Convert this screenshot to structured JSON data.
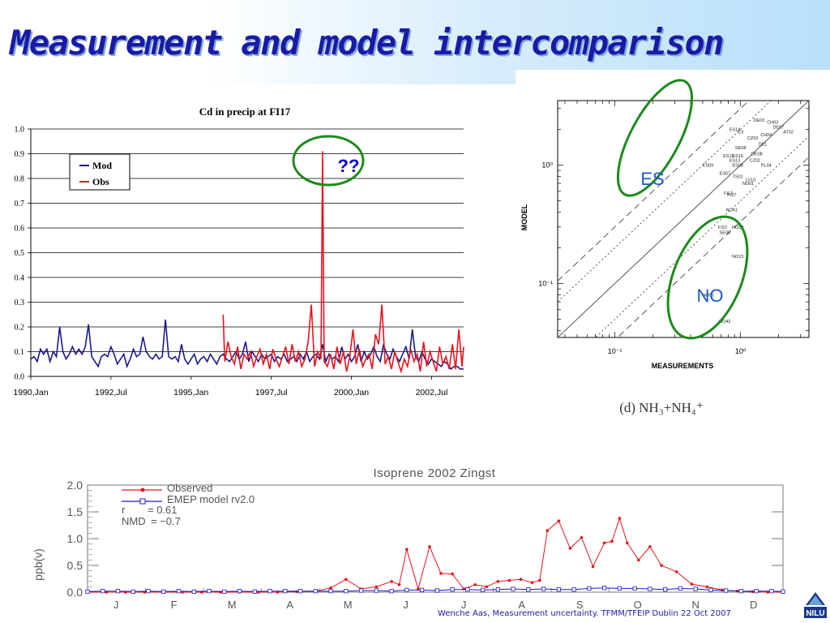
{
  "slide": {
    "title": "Measurement and model intercomparison",
    "footer": "Wenche Aas, Measurement uncertainty. TFMM/TFEIP Dublin 22 Oct 2007",
    "logo_text": "NILU"
  },
  "chart_data": [
    {
      "id": "cd",
      "type": "line",
      "title": "Cd in precip at FI17",
      "x_tick_labels": [
        "1990,Jan",
        "1992,Jul",
        "1995,Jan",
        "1997,Jul",
        "2000,Jan",
        "2002,Jul"
      ],
      "x_tick_decimal_years": [
        1990.0,
        1992.5,
        1995.0,
        1997.5,
        2000.0,
        2002.5
      ],
      "xlim": [
        1990.0,
        2003.5
      ],
      "ylim": [
        0,
        1.0
      ],
      "yticks": [
        "0.0",
        "0.1",
        "0.2",
        "0.3",
        "0.4",
        "0.5",
        "0.6",
        "0.7",
        "0.8",
        "0.9",
        "1.0"
      ],
      "grid": true,
      "legend": "upper-left",
      "series": [
        {
          "name": "Mod",
          "color": "#1a1a8c",
          "x": [
            1990.0,
            1990.1,
            1990.2,
            1990.3,
            1990.4,
            1990.5,
            1990.6,
            1990.7,
            1990.8,
            1990.9,
            1991.0,
            1991.1,
            1991.2,
            1991.3,
            1991.4,
            1991.5,
            1991.6,
            1991.7,
            1991.8,
            1991.9,
            1992.0,
            1992.1,
            1992.2,
            1992.3,
            1992.4,
            1992.5,
            1992.6,
            1992.7,
            1992.8,
            1992.9,
            1993.0,
            1993.1,
            1993.2,
            1993.3,
            1993.4,
            1993.5,
            1993.6,
            1993.7,
            1993.8,
            1993.9,
            1994.0,
            1994.1,
            1994.2,
            1994.3,
            1994.4,
            1994.5,
            1994.6,
            1994.7,
            1994.8,
            1994.9,
            1995.0,
            1995.1,
            1995.2,
            1995.3,
            1995.4,
            1995.5,
            1995.6,
            1995.7,
            1995.8,
            1995.9,
            1996.0,
            1996.1,
            1996.2,
            1996.3,
            1996.4,
            1996.5,
            1996.6,
            1996.7,
            1996.8,
            1996.9,
            1997.0,
            1997.1,
            1997.2,
            1997.3,
            1997.4,
            1997.5,
            1997.6,
            1997.7,
            1997.8,
            1997.9,
            1998.0,
            1998.1,
            1998.2,
            1998.3,
            1998.4,
            1998.5,
            1998.6,
            1998.7,
            1998.8,
            1998.9,
            1999.0,
            1999.1,
            1999.2,
            1999.3,
            1999.4,
            1999.5,
            1999.6,
            1999.7,
            1999.8,
            1999.9,
            2000.0,
            2000.1,
            2000.2,
            2000.3,
            2000.4,
            2000.5,
            2000.6,
            2000.7,
            2000.8,
            2000.9,
            2001.0,
            2001.1,
            2001.2,
            2001.3,
            2001.4,
            2001.5,
            2001.6,
            2001.7,
            2001.8,
            2001.9,
            2002.0,
            2002.1,
            2002.2,
            2002.3,
            2002.4,
            2002.5,
            2002.6,
            2002.7,
            2002.8,
            2002.9,
            2003.0,
            2003.1,
            2003.2,
            2003.3,
            2003.4,
            2003.5
          ],
          "y": [
            0.07,
            0.08,
            0.06,
            0.11,
            0.09,
            0.11,
            0.06,
            0.1,
            0.08,
            0.2,
            0.1,
            0.07,
            0.09,
            0.12,
            0.09,
            0.11,
            0.09,
            0.12,
            0.21,
            0.08,
            0.06,
            0.04,
            0.08,
            0.09,
            0.08,
            0.12,
            0.09,
            0.05,
            0.07,
            0.09,
            0.04,
            0.07,
            0.11,
            0.08,
            0.09,
            0.16,
            0.1,
            0.08,
            0.07,
            0.09,
            0.07,
            0.08,
            0.23,
            0.08,
            0.07,
            0.08,
            0.06,
            0.13,
            0.07,
            0.05,
            0.07,
            0.09,
            0.05,
            0.07,
            0.08,
            0.06,
            0.09,
            0.07,
            0.05,
            0.08,
            0.09,
            0.07,
            0.06,
            0.08,
            0.1,
            0.07,
            0.09,
            0.14,
            0.06,
            0.1,
            0.08,
            0.06,
            0.09,
            0.07,
            0.08,
            0.09,
            0.06,
            0.08,
            0.07,
            0.09,
            0.06,
            0.07,
            0.08,
            0.06,
            0.09,
            0.07,
            0.1,
            0.06,
            0.08,
            0.09,
            0.07,
            0.13,
            0.06,
            0.09,
            0.07,
            0.08,
            0.06,
            0.12,
            0.07,
            0.09,
            0.06,
            0.08,
            0.13,
            0.06,
            0.1,
            0.07,
            0.09,
            0.12,
            0.08,
            0.06,
            0.13,
            0.09,
            0.07,
            0.11,
            0.08,
            0.06,
            0.09,
            0.12,
            0.07,
            0.19,
            0.08,
            0.06,
            0.1,
            0.07,
            0.05,
            0.07,
            0.06,
            0.05,
            0.04,
            0.06,
            0.05,
            0.03,
            0.04,
            0.04,
            0.03,
            0.03
          ]
        },
        {
          "name": "Obs",
          "color": "#e8141c",
          "x": [
            1996.0,
            1996.05,
            1996.15,
            1996.25,
            1996.35,
            1996.45,
            1996.55,
            1996.65,
            1996.75,
            1996.85,
            1996.95,
            1997.05,
            1997.15,
            1997.25,
            1997.35,
            1997.45,
            1997.55,
            1997.65,
            1997.75,
            1997.85,
            1997.95,
            1998.05,
            1998.15,
            1998.25,
            1998.35,
            1998.45,
            1998.55,
            1998.65,
            1998.75,
            1998.85,
            1998.95,
            1999.05,
            1999.1,
            1999.15,
            1999.25,
            1999.35,
            1999.45,
            1999.55,
            1999.65,
            1999.75,
            1999.85,
            1999.95,
            2000.05,
            2000.15,
            2000.25,
            2000.35,
            2000.45,
            2000.55,
            2000.65,
            2000.75,
            2000.85,
            2000.95,
            2001.05,
            2001.15,
            2001.25,
            2001.35,
            2001.45,
            2001.55,
            2001.65,
            2001.75,
            2001.85,
            2001.95,
            2002.05,
            2002.15,
            2002.25,
            2002.35,
            2002.45,
            2002.55,
            2002.65,
            2002.75,
            2002.85,
            2002.95,
            2003.05,
            2003.15,
            2003.25,
            2003.35,
            2003.45,
            2003.5
          ],
          "y": [
            0.25,
            0.06,
            0.14,
            0.08,
            0.05,
            0.12,
            0.03,
            0.09,
            0.07,
            0.1,
            0.04,
            0.08,
            0.11,
            0.05,
            0.09,
            0.03,
            0.11,
            0.07,
            0.04,
            0.08,
            0.12,
            0.05,
            0.13,
            0.06,
            0.1,
            0.04,
            0.07,
            0.14,
            0.29,
            0.04,
            0.1,
            0.07,
            0.91,
            0.06,
            0.04,
            0.09,
            0.03,
            0.12,
            0.05,
            0.1,
            0.02,
            0.08,
            0.19,
            0.05,
            0.11,
            0.04,
            0.07,
            0.09,
            0.03,
            0.17,
            0.13,
            0.29,
            0.05,
            0.08,
            0.03,
            0.1,
            0.06,
            0.02,
            0.07,
            0.04,
            0.11,
            0.06,
            0.09,
            0.02,
            0.14,
            0.04,
            0.1,
            0.06,
            0.02,
            0.12,
            0.05,
            0.08,
            0.03,
            0.13,
            0.03,
            0.19,
            0.04,
            0.12
          ]
        }
      ],
      "annotations": [
        {
          "text": "??",
          "color": "#0000cc"
        }
      ]
    },
    {
      "id": "nh",
      "type": "scatter",
      "xlabel": "MEASUREMENTS",
      "ylabel": "MODEL",
      "x_scale": "log",
      "y_scale": "log",
      "xlim": [
        0.035,
        3.5
      ],
      "ylim": [
        0.035,
        3.5
      ],
      "x_tick_labels": [
        "10⁻¹",
        "10⁰"
      ],
      "y_tick_labels": [
        "10⁻¹",
        "10⁰"
      ],
      "caption": "(d) NH₃+NH₄⁺",
      "reference_lines": [
        "1:1",
        "factor 2",
        "factor 3"
      ],
      "points": [
        {
          "label": "ES14",
          "x": 0.9,
          "y": 2.0
        },
        {
          "label": "DE03",
          "x": 1.4,
          "y": 2.4
        },
        {
          "label": "CH03",
          "x": 1.8,
          "y": 2.3
        },
        {
          "label": "DE07",
          "x": 2.0,
          "y": 2.1
        },
        {
          "label": "AT02",
          "x": 2.4,
          "y": 1.9
        },
        {
          "label": "C3",
          "x": 1.0,
          "y": 1.9
        },
        {
          "label": "CZ03",
          "x": 1.25,
          "y": 1.7
        },
        {
          "label": "CH04",
          "x": 1.6,
          "y": 1.8
        },
        {
          "label": "SE08",
          "x": 1.0,
          "y": 1.4
        },
        {
          "label": "DE1",
          "x": 1.5,
          "y": 1.5
        },
        {
          "label": "ES11",
          "x": 0.8,
          "y": 1.2
        },
        {
          "label": "ES16",
          "x": 0.95,
          "y": 1.2
        },
        {
          "label": "DE08",
          "x": 1.35,
          "y": 1.25
        },
        {
          "label": "ES13",
          "x": 0.9,
          "y": 1.1
        },
        {
          "label": "ES08",
          "x": 0.95,
          "y": 1.0
        },
        {
          "label": "ES09",
          "x": 0.55,
          "y": 1.0
        },
        {
          "label": "CZ02",
          "x": 1.3,
          "y": 1.1
        },
        {
          "label": "PL04",
          "x": 1.6,
          "y": 1.0
        },
        {
          "label": "ES07",
          "x": 0.75,
          "y": 0.85
        },
        {
          "label": "TS01",
          "x": 0.95,
          "y": 0.8
        },
        {
          "label": "LV10",
          "x": 1.2,
          "y": 0.75
        },
        {
          "label": "NO01",
          "x": 1.15,
          "y": 0.7
        },
        {
          "label": "FI17",
          "x": 0.8,
          "y": 0.58
        },
        {
          "label": "FI37",
          "x": 0.85,
          "y": 0.56
        },
        {
          "label": "FI22",
          "x": 0.72,
          "y": 0.3
        },
        {
          "label": "SE05",
          "x": 0.75,
          "y": 0.27
        },
        {
          "label": "NO41",
          "x": 0.85,
          "y": 0.42
        },
        {
          "label": "NO39",
          "x": 0.95,
          "y": 0.3
        },
        {
          "label": "NO15",
          "x": 0.95,
          "y": 0.17
        },
        {
          "label": "NO55",
          "x": 0.55,
          "y": 0.08
        },
        {
          "label": "NO42",
          "x": 0.75,
          "y": 0.048
        }
      ],
      "annotations": [
        {
          "text": "ES",
          "color": "#1a55c8",
          "ring_color": "#1d8a1d"
        },
        {
          "text": "NO",
          "color": "#1a55c8",
          "ring_color": "#1d8a1d"
        }
      ]
    },
    {
      "id": "iso",
      "type": "line",
      "title": "Isoprene 2002 Zingst",
      "ylabel": "ppb(v)",
      "ylim": [
        0.0,
        2.0
      ],
      "yticks": [
        "0.0",
        "0.5",
        "1.0",
        "1.5",
        "2.0"
      ],
      "x_tick_labels": [
        "J",
        "F",
        "M",
        "A",
        "M",
        "J",
        "J",
        "A",
        "S",
        "O",
        "N",
        "D"
      ],
      "xlim": [
        0,
        366
      ],
      "series": [
        {
          "name": "Observed",
          "color": "#e8141c",
          "marker": "filled-circle",
          "x": [
            0,
            10,
            20,
            30,
            40,
            50,
            60,
            70,
            80,
            90,
            100,
            110,
            120,
            128,
            136,
            144,
            152,
            160,
            164,
            168,
            174,
            180,
            186,
            192,
            198,
            204,
            210,
            216,
            222,
            228,
            234,
            238,
            242,
            248,
            254,
            260,
            266,
            272,
            276,
            280,
            284,
            290,
            296,
            302,
            310,
            318,
            326,
            334,
            342,
            350,
            358,
            366
          ],
          "y": [
            0,
            0,
            0,
            0,
            0,
            0,
            0,
            0,
            0,
            0,
            0,
            0.01,
            0.02,
            0.08,
            0.24,
            0.06,
            0.1,
            0.2,
            0.14,
            0.8,
            0.06,
            0.85,
            0.35,
            0.34,
            0.06,
            0.14,
            0.1,
            0.2,
            0.22,
            0.24,
            0.18,
            0.22,
            1.15,
            1.33,
            0.82,
            1.02,
            0.48,
            0.92,
            0.95,
            1.38,
            0.92,
            0.6,
            0.85,
            0.5,
            0.38,
            0.15,
            0.1,
            0.04,
            0.02,
            0.01,
            0.0,
            0.0
          ]
        },
        {
          "name": "EMEP model rv2.0",
          "color": "#1a1acc",
          "marker": "open-square",
          "x": [
            0,
            8,
            16,
            24,
            32,
            40,
            48,
            56,
            64,
            72,
            80,
            88,
            96,
            104,
            112,
            120,
            128,
            136,
            144,
            152,
            160,
            168,
            176,
            184,
            192,
            200,
            208,
            216,
            224,
            232,
            240,
            248,
            256,
            264,
            272,
            280,
            288,
            296,
            304,
            312,
            320,
            328,
            336,
            344,
            352,
            360,
            366
          ],
          "y": [
            0.01,
            0.02,
            0.02,
            0.01,
            0.02,
            0.01,
            0.02,
            0.01,
            0.02,
            0.01,
            0.02,
            0.01,
            0.02,
            0.02,
            0.02,
            0.02,
            0.02,
            0.02,
            0.03,
            0.03,
            0.02,
            0.04,
            0.04,
            0.03,
            0.05,
            0.05,
            0.04,
            0.05,
            0.06,
            0.05,
            0.06,
            0.05,
            0.05,
            0.07,
            0.08,
            0.07,
            0.07,
            0.06,
            0.05,
            0.07,
            0.06,
            0.04,
            0.03,
            0.02,
            0.02,
            0.02,
            0.01
          ]
        }
      ],
      "stats": [
        {
          "label": "r",
          "value": "=  0.61"
        },
        {
          "label": "NMD",
          "value": "= −0.7"
        }
      ]
    }
  ]
}
